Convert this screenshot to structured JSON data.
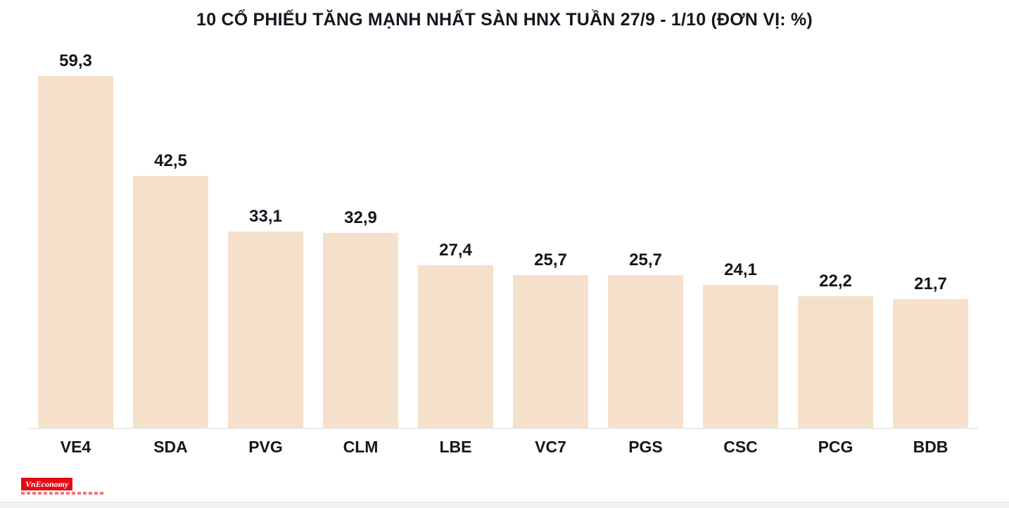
{
  "title": "10 CỔ PHIẾU TĂNG MẠNH NHẤT SÀN HNX TUẦN 27/9 - 1/10 (ĐƠN VỊ: %)",
  "logo": {
    "text": "VnEconomy"
  },
  "colors": {
    "bar": "#f5e0cb",
    "text": "#16161f",
    "baseline": "#ececec",
    "logo_bg": "#e50914"
  },
  "chart_data": {
    "type": "bar",
    "title": "10 CỔ PHIẾU TĂNG MẠNH NHẤT SÀN HNX TUẦN 27/9 - 1/10 (ĐƠN VỊ: %)",
    "categories": [
      "VE4",
      "SDA",
      "PVG",
      "CLM",
      "LBE",
      "VC7",
      "PGS",
      "CSC",
      "PCG",
      "BDB"
    ],
    "values": [
      59.3,
      42.5,
      33.1,
      32.9,
      27.4,
      25.7,
      25.7,
      24.1,
      22.2,
      21.7
    ],
    "value_labels": [
      "59,3",
      "42,5",
      "33,1",
      "32,9",
      "27,4",
      "25,7",
      "25,7",
      "24,1",
      "22,2",
      "21,7"
    ],
    "xlabel": "",
    "ylabel": "",
    "unit": "%",
    "ylim": [
      0,
      59.3
    ],
    "grid": false,
    "legend": "none",
    "bar_color": "#f5e0cb",
    "data_labels_position": "above-bars"
  }
}
